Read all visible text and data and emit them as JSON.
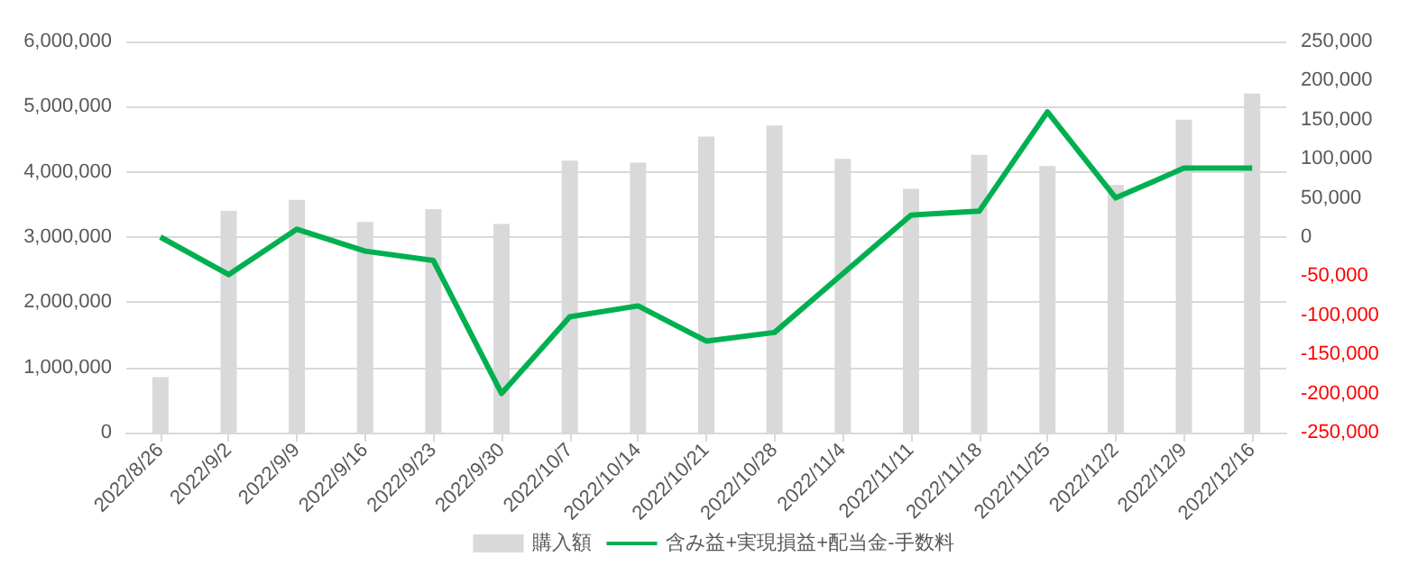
{
  "chart_data": {
    "type": "bar",
    "categories": [
      "2022/8/26",
      "2022/9/2",
      "2022/9/9",
      "2022/9/16",
      "2022/9/23",
      "2022/9/30",
      "2022/10/7",
      "2022/10/14",
      "2022/10/21",
      "2022/10/28",
      "2022/11/4",
      "2022/11/11",
      "2022/11/18",
      "2022/11/25",
      "2022/12/2",
      "2022/12/9",
      "2022/12/16"
    ],
    "series": [
      {
        "name": "購入額",
        "color": "#d9d9d9",
        "values": [
          850000,
          3400000,
          3570000,
          3230000,
          3430000,
          3200000,
          4170000,
          4140000,
          4540000,
          4710000,
          4200000,
          3740000,
          4260000,
          4090000,
          3800000,
          4800000,
          5200000
        ]
      },
      {
        "name": "含み益+実現損益+配当金-手数料",
        "type": "line",
        "axis": "y2",
        "color": "#00b050",
        "values": [
          0,
          -48000,
          10000,
          -18000,
          -30000,
          -200000,
          -102000,
          -88000,
          -133000,
          -122000,
          -47000,
          28000,
          33000,
          160000,
          50000,
          88000,
          88000
        ]
      }
    ],
    "ylim": [
      0,
      6000000
    ],
    "yticks": [
      0,
      {
        "value": 1000000,
        "label": "1,000,000"
      },
      {
        "value": 2000000,
        "label": "2,000,000"
      },
      {
        "value": 3000000,
        "label": "3,000,000"
      },
      {
        "value": 4000000,
        "label": "4,000,000"
      },
      {
        "value": 5000000,
        "label": "5,000,000"
      },
      {
        "value": 6000000,
        "label": "6,000,000"
      }
    ],
    "y2lim": [
      -250000,
      250000
    ],
    "y2ticks": [
      {
        "value": -250000,
        "label": "-250,000"
      },
      {
        "value": -200000,
        "label": "-200,000"
      },
      {
        "value": -150000,
        "label": "-150,000"
      },
      {
        "value": -100000,
        "label": "-100,000"
      },
      {
        "value": -50000,
        "label": "-50,000"
      },
      0,
      {
        "value": 50000,
        "label": "50,000"
      },
      {
        "value": 100000,
        "label": "100,000"
      },
      {
        "value": 150000,
        "label": "150,000"
      },
      {
        "value": 200000,
        "label": "200,000"
      },
      {
        "value": 250000,
        "label": "250,000"
      }
    ],
    "grid": "y",
    "legend": "bottom",
    "marker": "none",
    "line_style": "solid"
  }
}
